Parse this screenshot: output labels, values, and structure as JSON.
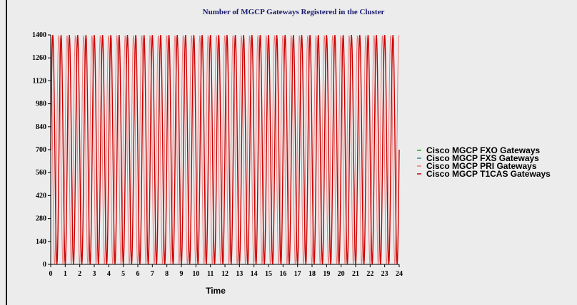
{
  "chart_data": {
    "type": "line",
    "title": "Number of MGCP Gateways Registered in the Cluster",
    "xlabel": "Time",
    "ylabel": "",
    "xlim": [
      0,
      24
    ],
    "ylim": [
      0,
      1400
    ],
    "xticks": [
      "0",
      "1",
      "2",
      "3",
      "4",
      "5",
      "6",
      "7",
      "8",
      "9",
      "10",
      "11",
      "12",
      "13",
      "14",
      "15",
      "16",
      "17",
      "18",
      "19",
      "20",
      "21",
      "22",
      "23",
      "24"
    ],
    "yticks": [
      "0",
      "140",
      "280",
      "420",
      "560",
      "700",
      "840",
      "980",
      "1120",
      "1260",
      "1400"
    ],
    "grid": false,
    "legend_position": "right",
    "series": [
      {
        "name": "Cisco MGCP FXO Gateways",
        "color": "#22aa22",
        "cycles": 0,
        "min": 0,
        "max": 0
      },
      {
        "name": "Cisco MGCP FXS Gateways",
        "color": "#2a8a8a",
        "cycles": 0,
        "min": 0,
        "max": 0
      },
      {
        "name": "Cisco MGCP PRI Gateways",
        "color": "#ee7777",
        "cycles": 42,
        "min": 0,
        "max": 1400
      },
      {
        "name": "Cisco MGCP T1CAS Gateways",
        "color": "#cc0000",
        "cycles": 42,
        "min": 0,
        "max": 1400
      }
    ]
  }
}
